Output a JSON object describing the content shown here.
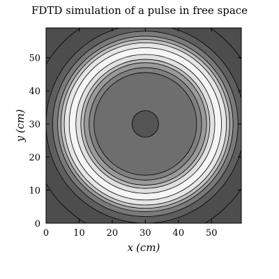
{
  "chart_data": {
    "type": "contour",
    "title": "FDTD simulation of a pulse in free space",
    "xlabel_var": "x",
    "xlabel_unit": "(cm)",
    "ylabel_var": "y",
    "ylabel_unit": "(cm)",
    "xlim": [
      0,
      59
    ],
    "ylim": [
      0,
      59
    ],
    "xticks": [
      0,
      10,
      20,
      30,
      40,
      50
    ],
    "yticks": [
      0,
      10,
      20,
      30,
      40,
      50
    ],
    "xtick_labels": [
      "0",
      "10",
      "20",
      "30",
      "40",
      "50"
    ],
    "ytick_labels": [
      "0",
      "10",
      "20",
      "30",
      "40",
      "50"
    ],
    "pulse_center": [
      30,
      30
    ],
    "contour_rings": [
      {
        "radius": 35.0,
        "fill": "#4d4d4d"
      },
      {
        "radius": 30.0,
        "fill": "#5e5e5e"
      },
      {
        "radius": 28.0,
        "fill": "#7a7a7a"
      },
      {
        "radius": 26.5,
        "fill": "#9e9e9e"
      },
      {
        "radius": 25.5,
        "fill": "#c4c4c4"
      },
      {
        "radius": 24.5,
        "fill": "#e6e6e6"
      },
      {
        "radius": 23.0,
        "fill": "#f5f5f5"
      },
      {
        "radius": 21.0,
        "fill": "#e0e0e0"
      },
      {
        "radius": 19.5,
        "fill": "#bcbcbc"
      },
      {
        "radius": 18.5,
        "fill": "#9a9a9a"
      },
      {
        "radius": 17.0,
        "fill": "#808080"
      },
      {
        "radius": 15.5,
        "fill": "#6e6e6e"
      },
      {
        "radius": 4.0,
        "fill": "#545454"
      }
    ],
    "background_fill": "#4d4d4d"
  }
}
